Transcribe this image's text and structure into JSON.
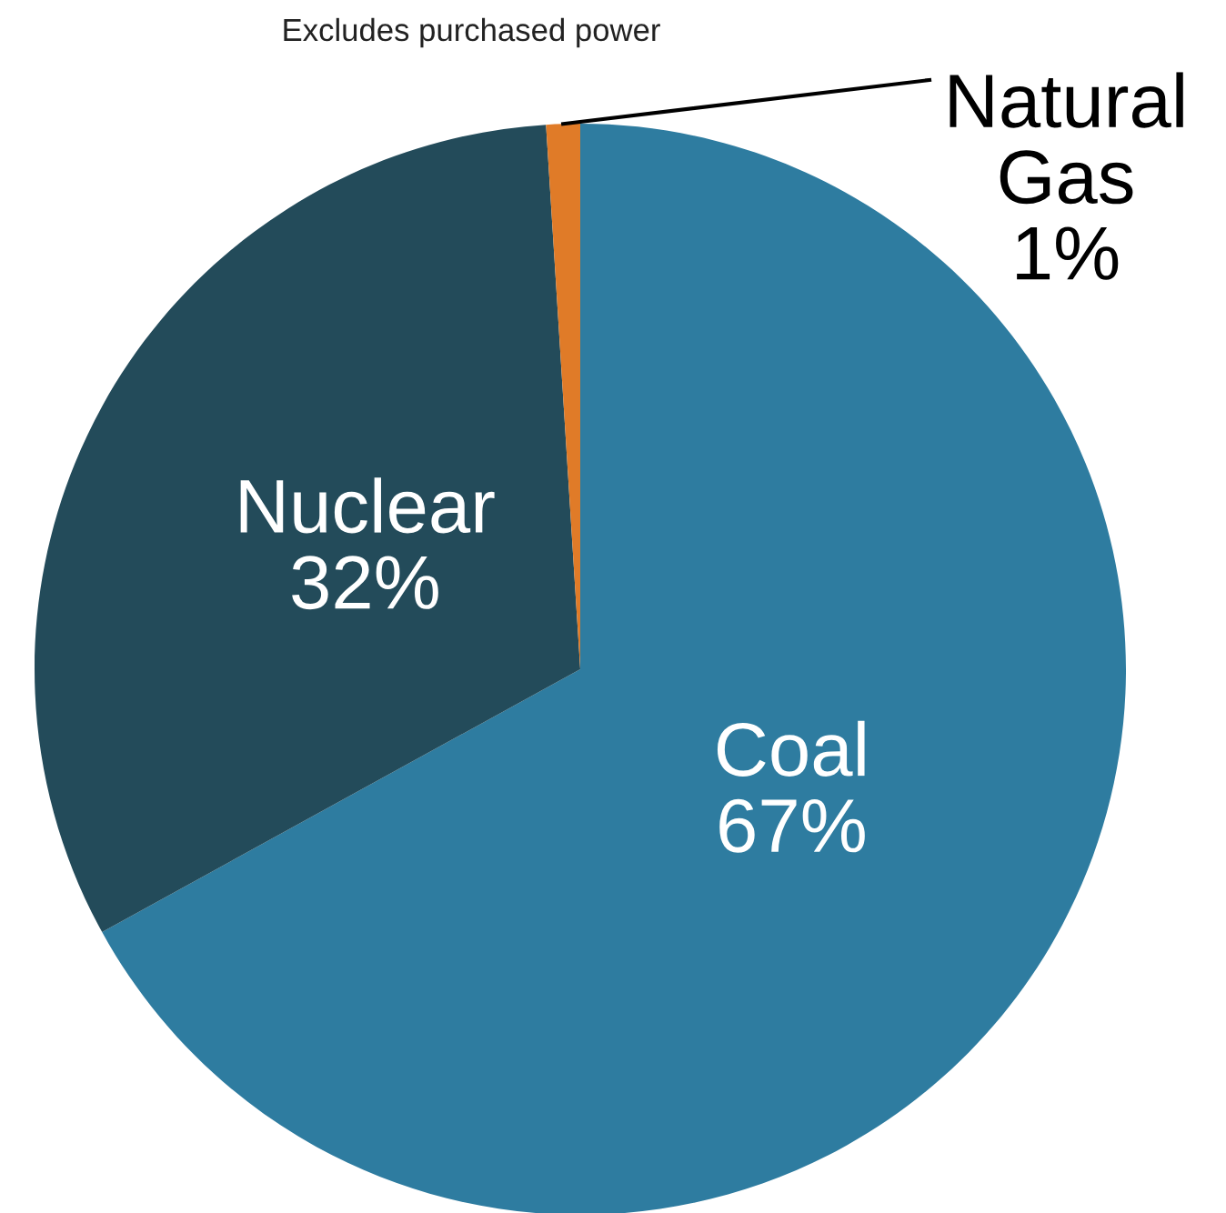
{
  "chart_data": {
    "type": "pie",
    "categories": [
      "Coal",
      "Nuclear",
      "Natural Gas"
    ],
    "values": [
      67,
      32,
      1
    ],
    "value_labels": [
      "67%",
      "32%",
      "1%"
    ],
    "colors": [
      "#2e7ca0",
      "#234b5a",
      "#e07b28"
    ],
    "annotations": [
      "Excludes purchased power"
    ]
  }
}
